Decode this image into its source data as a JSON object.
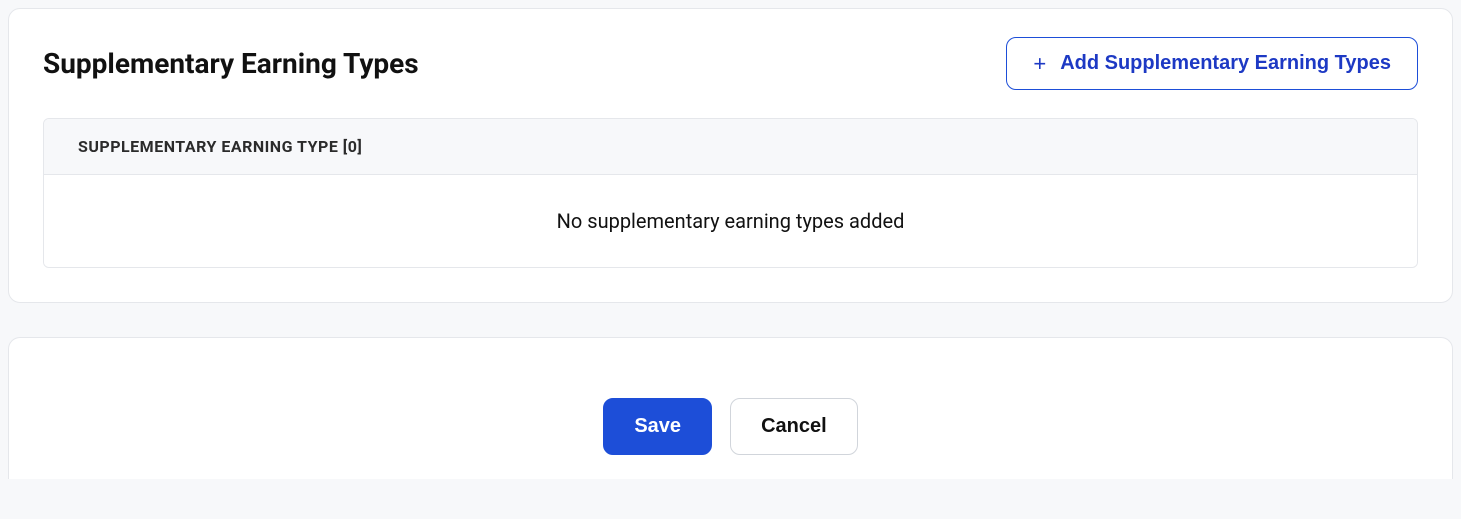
{
  "section": {
    "title": "Supplementary Earning Types",
    "add_button_label": "Add Supplementary Earning Types",
    "table": {
      "count": 0,
      "header_label": "SUPPLEMENTARY EARNING TYPE [0]",
      "empty_message": "No supplementary earning types added"
    }
  },
  "actions": {
    "save_label": "Save",
    "cancel_label": "Cancel"
  },
  "colors": {
    "page_bg": "#f7f8fa",
    "card_bg": "#ffffff",
    "card_border": "#e5e7eb",
    "primary": "#1d4ed8",
    "primary_text": "#1d39c4",
    "text": "#111111",
    "secondary_border": "#d1d5db",
    "table_header_bg": "#f7f8fa"
  }
}
